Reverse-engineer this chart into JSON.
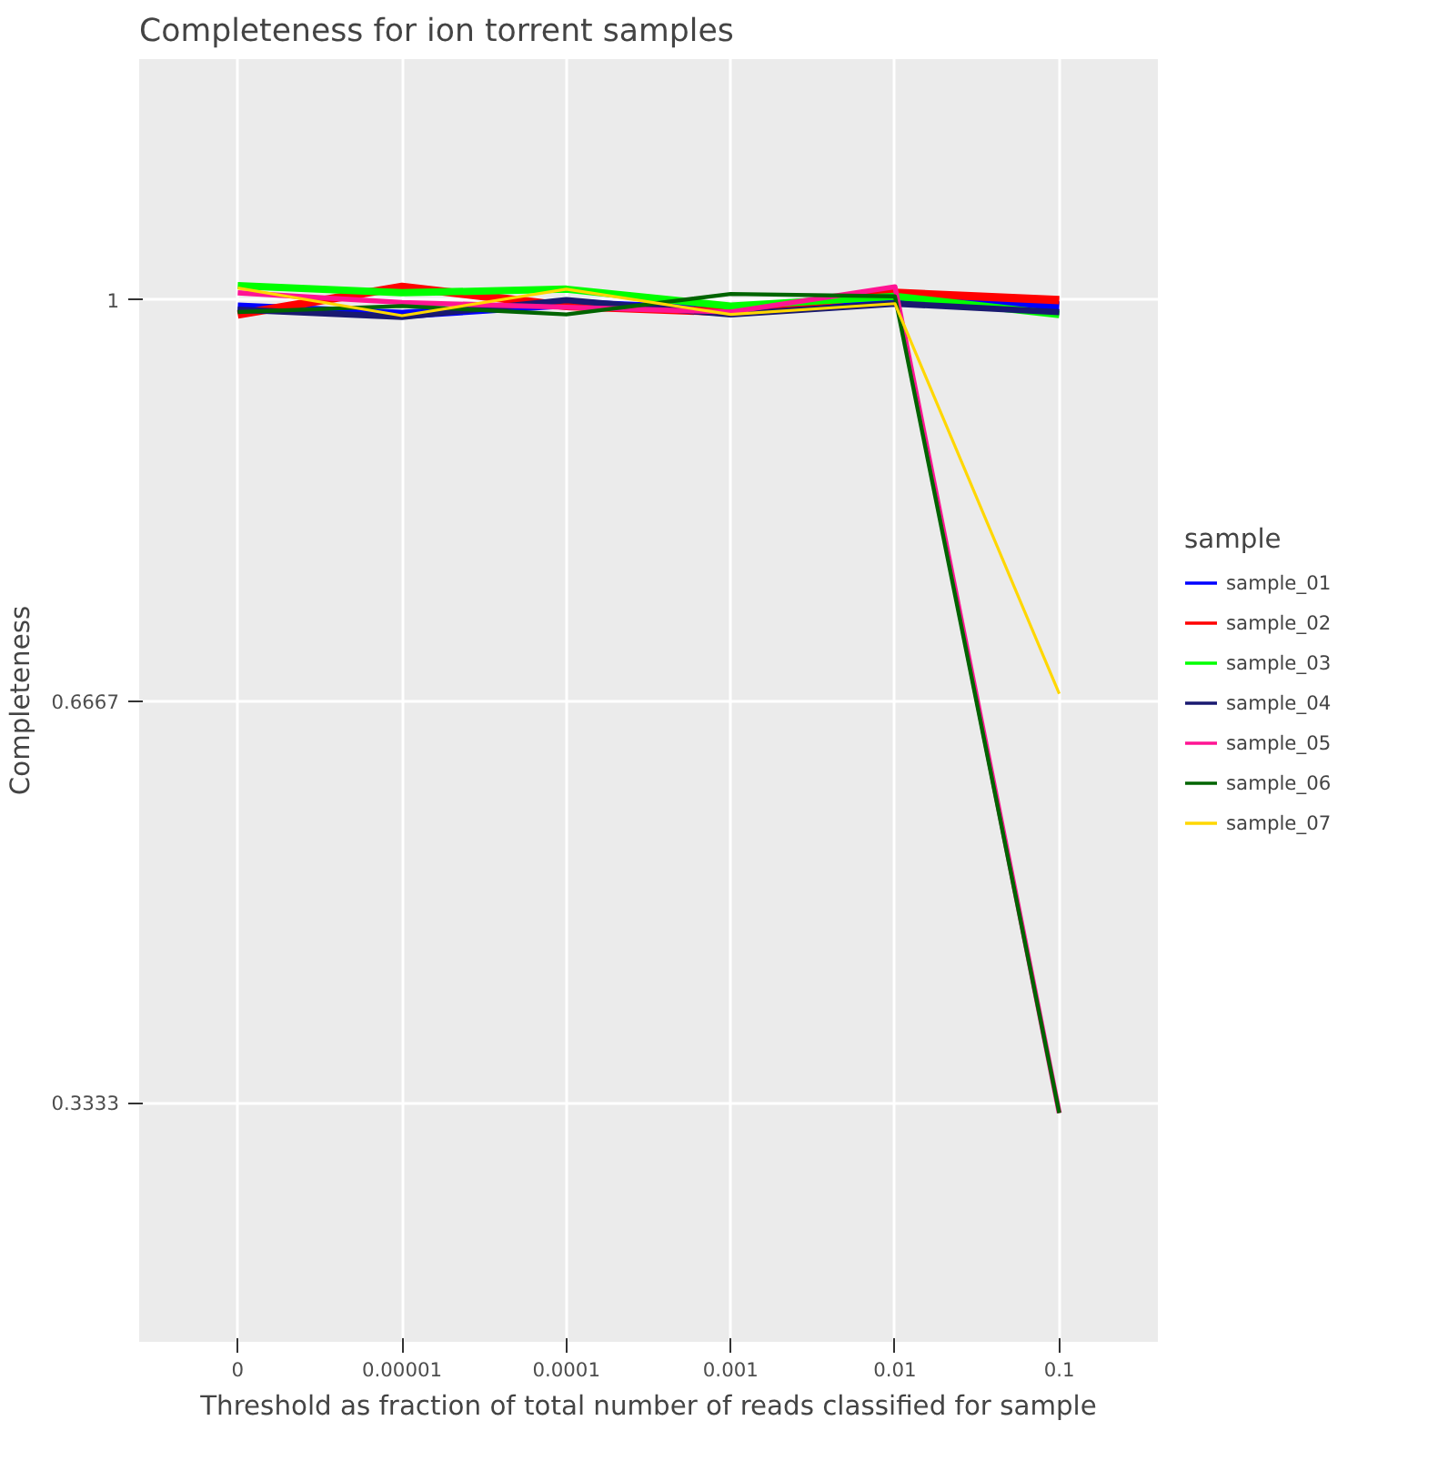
{
  "chart_data": {
    "type": "line",
    "title": "Completeness for ion torrent samples",
    "xlabel": "Threshold as fraction of total number of reads classified for sample",
    "ylabel": "Completeness",
    "legend_title": "sample",
    "categories": [
      "0",
      "0.00001",
      "0.0001",
      "0.001",
      "0.01",
      "0.1"
    ],
    "ylim": [
      0.135,
      1.2
    ],
    "yticks": [
      {
        "value": 0.3333,
        "label": "0.3333"
      },
      {
        "value": 0.6667,
        "label": "0.6667"
      },
      {
        "value": 1,
        "label": "1"
      }
    ],
    "grid": true,
    "legend": "right",
    "line_style": "solid",
    "series": [
      {
        "name": "sample_01",
        "color": "#0000ff",
        "values": [
          0.994,
          0.988,
          0.997,
          0.991,
          1.002,
          0.995
        ]
      },
      {
        "name": "sample_02",
        "color": "#ff0000",
        "values": [
          0.988,
          1.011,
          0.995,
          0.99,
          1.006,
          1.0
        ]
      },
      {
        "name": "sample_03",
        "color": "#00ff00",
        "values": [
          1.012,
          1.006,
          1.009,
          0.995,
          1.003,
          0.988
        ]
      },
      {
        "name": "sample_04",
        "color": "#191970",
        "values": [
          0.992,
          0.986,
          1.0,
          0.988,
          0.997,
          0.99
        ]
      },
      {
        "name": "sample_05",
        "color": "#ff1493",
        "values": [
          1.006,
          0.998,
          0.994,
          0.99,
          1.011,
          0.325
        ]
      },
      {
        "name": "sample_06",
        "color": "#006400",
        "values": [
          0.99,
          0.995,
          0.988,
          1.005,
          1.003,
          0.325
        ]
      },
      {
        "name": "sample_07",
        "color": "#ffd700",
        "values": [
          1.01,
          0.987,
          1.009,
          0.988,
          0.997,
          0.673
        ]
      }
    ]
  }
}
